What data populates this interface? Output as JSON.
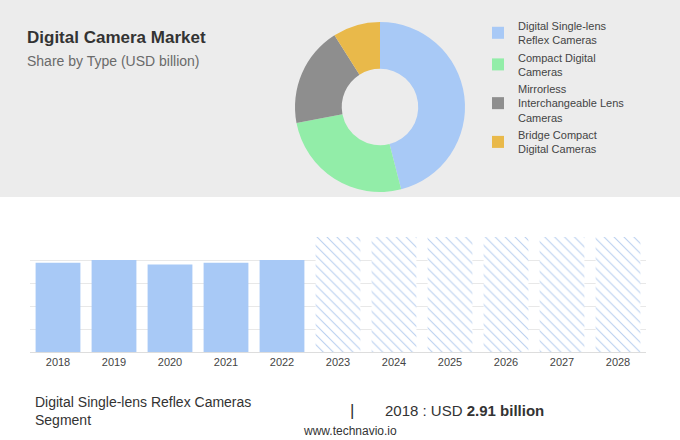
{
  "chart_data": [
    {
      "type": "donut",
      "title": "Digital Camera Market",
      "subtitle": "Share by Type (USD billion)",
      "categories": [
        "Digital Single-lens Reflex Cameras",
        "Compact Digital Cameras",
        "Mirrorless Interchangeable Lens Cameras",
        "Bridge Compact Digital Cameras"
      ],
      "values": [
        46,
        26,
        19,
        9
      ],
      "colors": [
        "#a8c9f6",
        "#92eda8",
        "#8e8e8e",
        "#e9b94a"
      ],
      "legend": "right"
    },
    {
      "type": "bar",
      "categories": [
        "2018",
        "2019",
        "2020",
        "2021",
        "2022",
        "2023",
        "2024",
        "2025",
        "2026",
        "2027",
        "2028"
      ],
      "series": [
        {
          "color": "#a8c9f6",
          "values": [
            2.91,
            3.0,
            2.85,
            2.91,
            3.0,
            null,
            null,
            null,
            null,
            null,
            null
          ]
        },
        {
          "color": "#b9cff0",
          "marker": "hatched",
          "values": [
            null,
            null,
            null,
            null,
            null,
            3.75,
            3.75,
            3.75,
            3.75,
            3.75,
            3.75
          ]
        }
      ],
      "ylim": [
        0,
        3.75
      ],
      "yticks": [
        0,
        0.75,
        1.5,
        2.25,
        3,
        3.75
      ],
      "grid": true,
      "tick_labels": "x"
    }
  ],
  "footer": {
    "segment": "Digital Single-lens Reflex Cameras Segment",
    "separator": "|",
    "prefix": "2018 : USD",
    "value": "2.91 billion",
    "source": "www.technavio.io"
  }
}
